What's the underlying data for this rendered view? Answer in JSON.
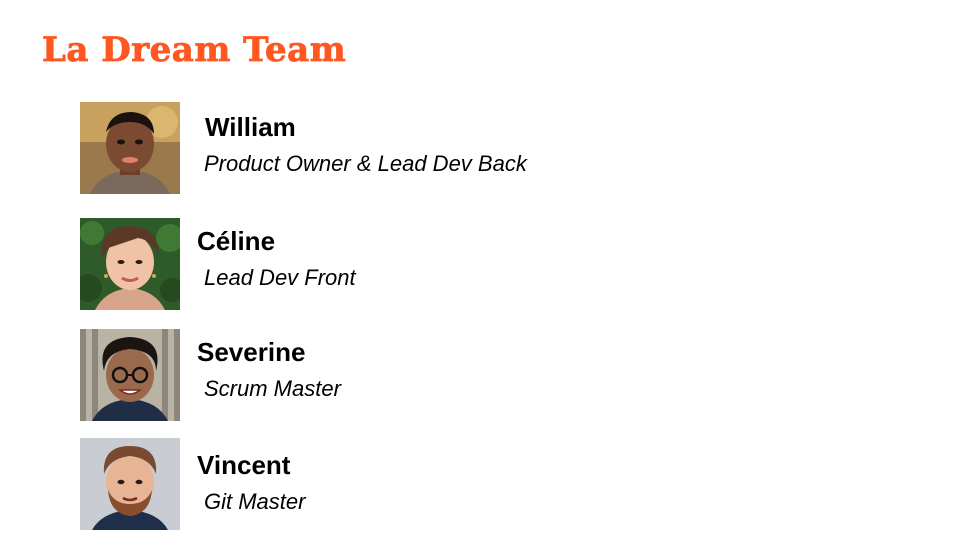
{
  "slide": {
    "title": "La Dream Team",
    "accent_color": "#ff5722"
  },
  "members": [
    {
      "name": "William",
      "role": "Product Owner & Lead Dev Back",
      "avatar_icon": "william-avatar"
    },
    {
      "name": "Céline",
      "role": "Lead Dev Front",
      "avatar_icon": "celine-avatar"
    },
    {
      "name": "Severine",
      "role": "Scrum Master",
      "avatar_icon": "severine-avatar"
    },
    {
      "name": "Vincent",
      "role": "Git Master",
      "avatar_icon": "vincent-avatar"
    }
  ]
}
